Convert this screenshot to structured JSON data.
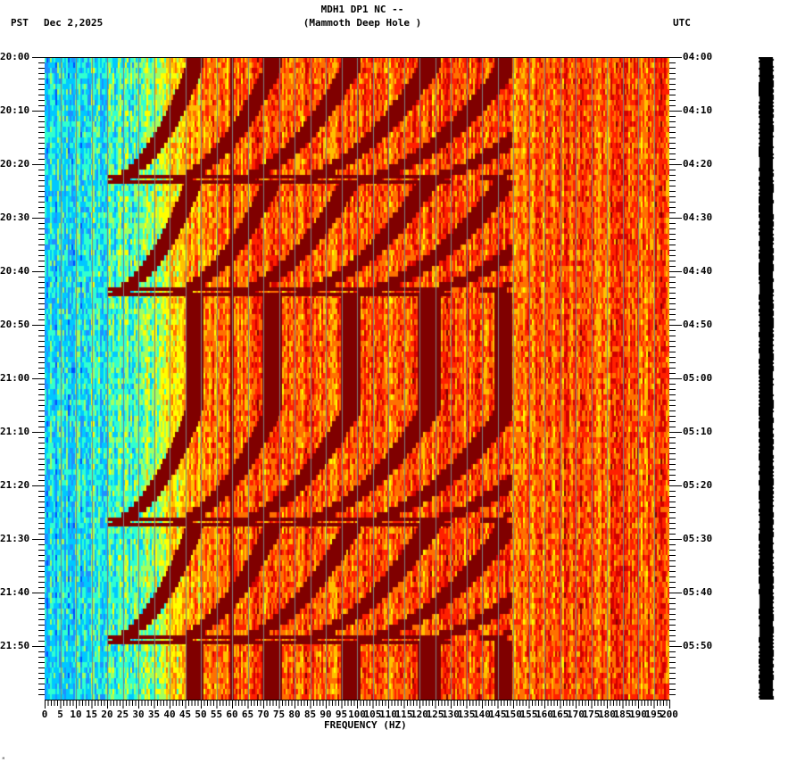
{
  "header": {
    "title_line1": "MDH1 DP1 NC --",
    "title_line2": "(Mammoth Deep Hole )",
    "tz_left": "PST",
    "date": "Dec 2,2025",
    "tz_right": "UTC"
  },
  "corner_mark": "ᴹ",
  "chart_data": {
    "type": "heatmap",
    "title": "MDH1 DP1 NC -- (Mammoth Deep Hole )",
    "subtitle": "Dec 2,2025",
    "xlabel": "FREQUENCY (HZ)",
    "ylabel_left": "PST",
    "ylabel_right": "UTC",
    "xlim": [
      0,
      200
    ],
    "x_ticks": [
      0,
      5,
      10,
      15,
      20,
      25,
      30,
      35,
      40,
      45,
      50,
      55,
      60,
      65,
      70,
      75,
      80,
      85,
      90,
      95,
      100,
      105,
      110,
      115,
      120,
      125,
      130,
      135,
      140,
      145,
      150,
      155,
      160,
      165,
      170,
      175,
      180,
      185,
      190,
      195,
      200
    ],
    "x_minor_tick_step_hz": 1,
    "y_range_minutes": 120,
    "y_minor_tick_step_min": 1,
    "y_ticks_left": [
      "20:00",
      "20:10",
      "20:20",
      "20:30",
      "20:40",
      "20:50",
      "21:00",
      "21:10",
      "21:20",
      "21:30",
      "21:40",
      "21:50"
    ],
    "y_ticks_right": [
      "04:00",
      "04:10",
      "04:20",
      "04:30",
      "04:40",
      "04:50",
      "05:00",
      "05:10",
      "05:20",
      "05:30",
      "05:40",
      "05:50"
    ],
    "grid": {
      "vertical_every_hz": 5,
      "color": "#808080"
    },
    "colormap": [
      "#0050ff",
      "#1e90ff",
      "#00c8ff",
      "#30ffd0",
      "#a0ff60",
      "#ffff00",
      "#ffc000",
      "#ff7000",
      "#ff2000",
      "#d00000",
      "#800000"
    ],
    "features": {
      "persistent_line_hz": 60,
      "low_freq_quiet_below_hz": 30,
      "sweep_reset_minutes": [
        23,
        44,
        87,
        109
      ],
      "sweep_family_note": "Descending curved harmonic arcs (dark red) repeating roughly every ~21 minutes, with harmonics spaced ~20 Hz apart starting near 20-30 Hz",
      "broadband_high_freq": "Yellow/orange/red noise above ~130 Hz"
    }
  },
  "right_panel": {
    "bar_color": "#000000"
  }
}
